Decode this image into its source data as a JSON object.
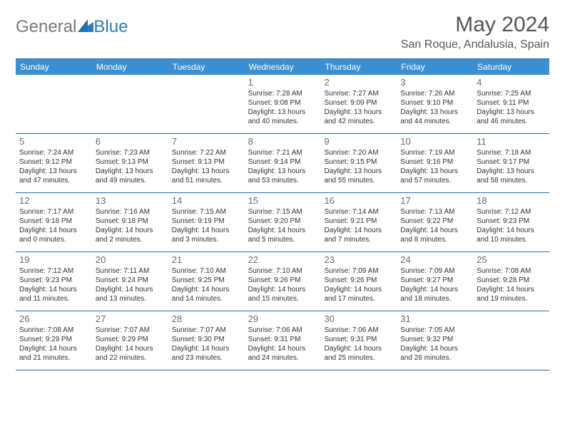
{
  "logo": {
    "general": "General",
    "blue": "Blue",
    "mark_color": "#2f7bbf"
  },
  "header": {
    "month_title": "May 2024",
    "location": "San Roque, Andalusia, Spain"
  },
  "colors": {
    "header_bar": "#3b8fd0",
    "border": "#1f6fb2",
    "dow_text": "#ffffff",
    "daynum": "#6b6b6b",
    "body_text": "#333333",
    "title_text": "#565656"
  },
  "days_of_week": [
    "Sunday",
    "Monday",
    "Tuesday",
    "Wednesday",
    "Thursday",
    "Friday",
    "Saturday"
  ],
  "weeks": [
    [
      {
        "n": "",
        "lines": [
          "",
          "",
          "",
          ""
        ],
        "empty": true
      },
      {
        "n": "",
        "lines": [
          "",
          "",
          "",
          ""
        ],
        "empty": true
      },
      {
        "n": "",
        "lines": [
          "",
          "",
          "",
          ""
        ],
        "empty": true
      },
      {
        "n": "1",
        "lines": [
          "Sunrise: 7:28 AM",
          "Sunset: 9:08 PM",
          "Daylight: 13 hours",
          "and 40 minutes."
        ]
      },
      {
        "n": "2",
        "lines": [
          "Sunrise: 7:27 AM",
          "Sunset: 9:09 PM",
          "Daylight: 13 hours",
          "and 42 minutes."
        ]
      },
      {
        "n": "3",
        "lines": [
          "Sunrise: 7:26 AM",
          "Sunset: 9:10 PM",
          "Daylight: 13 hours",
          "and 44 minutes."
        ]
      },
      {
        "n": "4",
        "lines": [
          "Sunrise: 7:25 AM",
          "Sunset: 9:11 PM",
          "Daylight: 13 hours",
          "and 46 minutes."
        ]
      }
    ],
    [
      {
        "n": "5",
        "lines": [
          "Sunrise: 7:24 AM",
          "Sunset: 9:12 PM",
          "Daylight: 13 hours",
          "and 47 minutes."
        ]
      },
      {
        "n": "6",
        "lines": [
          "Sunrise: 7:23 AM",
          "Sunset: 9:13 PM",
          "Daylight: 13 hours",
          "and 49 minutes."
        ]
      },
      {
        "n": "7",
        "lines": [
          "Sunrise: 7:22 AM",
          "Sunset: 9:13 PM",
          "Daylight: 13 hours",
          "and 51 minutes."
        ]
      },
      {
        "n": "8",
        "lines": [
          "Sunrise: 7:21 AM",
          "Sunset: 9:14 PM",
          "Daylight: 13 hours",
          "and 53 minutes."
        ]
      },
      {
        "n": "9",
        "lines": [
          "Sunrise: 7:20 AM",
          "Sunset: 9:15 PM",
          "Daylight: 13 hours",
          "and 55 minutes."
        ]
      },
      {
        "n": "10",
        "lines": [
          "Sunrise: 7:19 AM",
          "Sunset: 9:16 PM",
          "Daylight: 13 hours",
          "and 57 minutes."
        ]
      },
      {
        "n": "11",
        "lines": [
          "Sunrise: 7:18 AM",
          "Sunset: 9:17 PM",
          "Daylight: 13 hours",
          "and 58 minutes."
        ]
      }
    ],
    [
      {
        "n": "12",
        "lines": [
          "Sunrise: 7:17 AM",
          "Sunset: 9:18 PM",
          "Daylight: 14 hours",
          "and 0 minutes."
        ]
      },
      {
        "n": "13",
        "lines": [
          "Sunrise: 7:16 AM",
          "Sunset: 9:18 PM",
          "Daylight: 14 hours",
          "and 2 minutes."
        ]
      },
      {
        "n": "14",
        "lines": [
          "Sunrise: 7:15 AM",
          "Sunset: 9:19 PM",
          "Daylight: 14 hours",
          "and 3 minutes."
        ]
      },
      {
        "n": "15",
        "lines": [
          "Sunrise: 7:15 AM",
          "Sunset: 9:20 PM",
          "Daylight: 14 hours",
          "and 5 minutes."
        ]
      },
      {
        "n": "16",
        "lines": [
          "Sunrise: 7:14 AM",
          "Sunset: 9:21 PM",
          "Daylight: 14 hours",
          "and 7 minutes."
        ]
      },
      {
        "n": "17",
        "lines": [
          "Sunrise: 7:13 AM",
          "Sunset: 9:22 PM",
          "Daylight: 14 hours",
          "and 8 minutes."
        ]
      },
      {
        "n": "18",
        "lines": [
          "Sunrise: 7:12 AM",
          "Sunset: 9:23 PM",
          "Daylight: 14 hours",
          "and 10 minutes."
        ]
      }
    ],
    [
      {
        "n": "19",
        "lines": [
          "Sunrise: 7:12 AM",
          "Sunset: 9:23 PM",
          "Daylight: 14 hours",
          "and 11 minutes."
        ]
      },
      {
        "n": "20",
        "lines": [
          "Sunrise: 7:11 AM",
          "Sunset: 9:24 PM",
          "Daylight: 14 hours",
          "and 13 minutes."
        ]
      },
      {
        "n": "21",
        "lines": [
          "Sunrise: 7:10 AM",
          "Sunset: 9:25 PM",
          "Daylight: 14 hours",
          "and 14 minutes."
        ]
      },
      {
        "n": "22",
        "lines": [
          "Sunrise: 7:10 AM",
          "Sunset: 9:26 PM",
          "Daylight: 14 hours",
          "and 15 minutes."
        ]
      },
      {
        "n": "23",
        "lines": [
          "Sunrise: 7:09 AM",
          "Sunset: 9:26 PM",
          "Daylight: 14 hours",
          "and 17 minutes."
        ]
      },
      {
        "n": "24",
        "lines": [
          "Sunrise: 7:09 AM",
          "Sunset: 9:27 PM",
          "Daylight: 14 hours",
          "and 18 minutes."
        ]
      },
      {
        "n": "25",
        "lines": [
          "Sunrise: 7:08 AM",
          "Sunset: 9:28 PM",
          "Daylight: 14 hours",
          "and 19 minutes."
        ]
      }
    ],
    [
      {
        "n": "26",
        "lines": [
          "Sunrise: 7:08 AM",
          "Sunset: 9:29 PM",
          "Daylight: 14 hours",
          "and 21 minutes."
        ]
      },
      {
        "n": "27",
        "lines": [
          "Sunrise: 7:07 AM",
          "Sunset: 9:29 PM",
          "Daylight: 14 hours",
          "and 22 minutes."
        ]
      },
      {
        "n": "28",
        "lines": [
          "Sunrise: 7:07 AM",
          "Sunset: 9:30 PM",
          "Daylight: 14 hours",
          "and 23 minutes."
        ]
      },
      {
        "n": "29",
        "lines": [
          "Sunrise: 7:06 AM",
          "Sunset: 9:31 PM",
          "Daylight: 14 hours",
          "and 24 minutes."
        ]
      },
      {
        "n": "30",
        "lines": [
          "Sunrise: 7:06 AM",
          "Sunset: 9:31 PM",
          "Daylight: 14 hours",
          "and 25 minutes."
        ]
      },
      {
        "n": "31",
        "lines": [
          "Sunrise: 7:05 AM",
          "Sunset: 9:32 PM",
          "Daylight: 14 hours",
          "and 26 minutes."
        ]
      },
      {
        "n": "",
        "lines": [
          "",
          "",
          "",
          ""
        ],
        "empty": true
      }
    ]
  ]
}
